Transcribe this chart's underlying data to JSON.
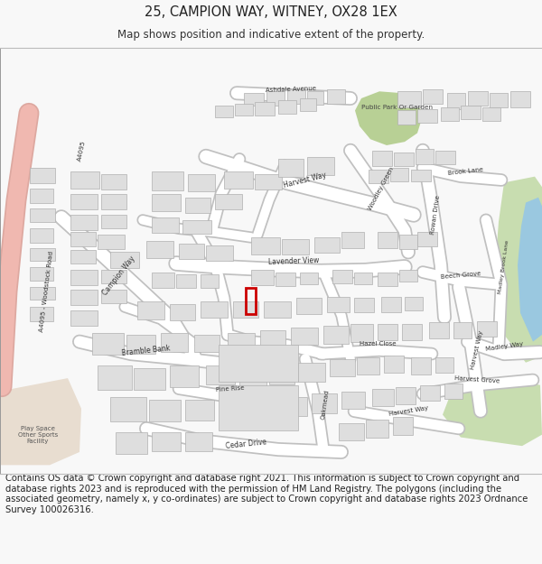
{
  "title_line1": "25, CAMPION WAY, WITNEY, OX28 1EX",
  "title_line2": "Map shows position and indicative extent of the property.",
  "footer_text": "Contains OS data © Crown copyright and database right 2021. This information is subject to Crown copyright and database rights 2023 and is reproduced with the permission of HM Land Registry. The polygons (including the associated geometry, namely x, y co-ordinates) are subject to Crown copyright and database rights 2023 Ordnance Survey 100026316.",
  "bg_color": "#f8f8f8",
  "map_bg": "#f5f3f0",
  "road_color": "#ffffff",
  "road_outline": "#c8c8c8",
  "building_fill": "#dedede",
  "building_edge": "#b0b0b0",
  "green_fill": "#c8ddb0",
  "green2_fill": "#b8d095",
  "pink_road": "#f0b8b0",
  "blue_water": "#9ac8e0",
  "red_outline": "#cc0000",
  "title_fontsize": 10.5,
  "subtitle_fontsize": 8.5,
  "footer_fontsize": 7.2
}
